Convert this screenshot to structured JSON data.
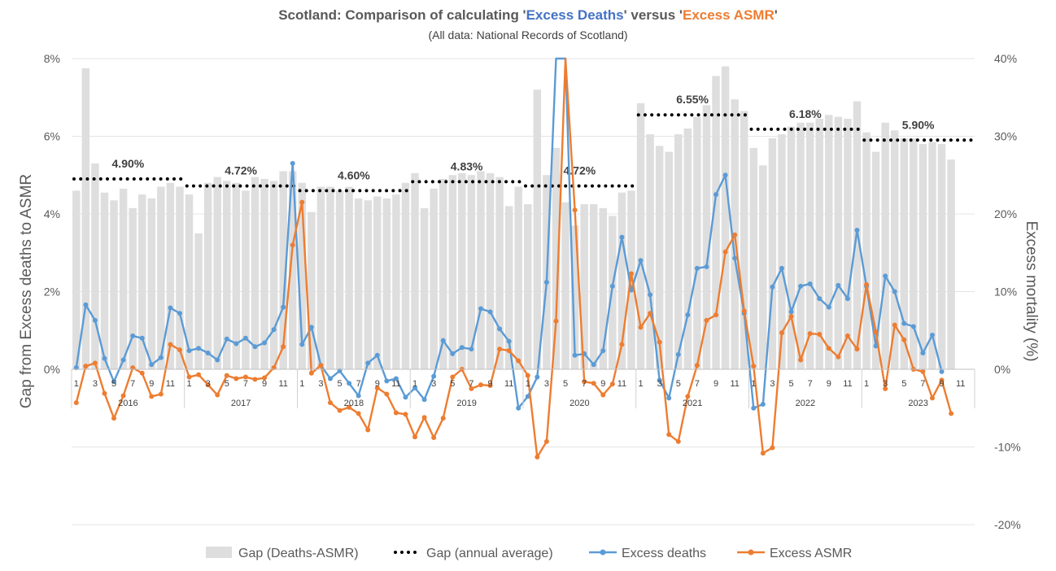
{
  "chart_data": {
    "type": "bar+line",
    "title_parts": [
      {
        "text": "Scotland: Comparison of calculating '",
        "color": "#595959"
      },
      {
        "text": "Excess Deaths",
        "color": "#4472c4"
      },
      {
        "text": "' versus '",
        "color": "#595959"
      },
      {
        "text": "Excess ASMR",
        "color": "#ed7d31"
      },
      {
        "text": "'",
        "color": "#595959"
      }
    ],
    "subtitle": "(All data: National Records of Scotland)",
    "ylabel_left": "Gap from Excess deaths to ASMR",
    "ylabel_right": "Excess mortality (%)",
    "left_axis": {
      "min": -4,
      "max": 8,
      "ticks": [
        0,
        2,
        4,
        6,
        8
      ],
      "tick_labels": [
        "0%",
        "2%",
        "4%",
        "6%",
        "8%"
      ]
    },
    "right_axis": {
      "min": -20,
      "max": 40,
      "ticks": [
        -20,
        -10,
        0,
        10,
        20,
        30,
        40
      ],
      "tick_labels": [
        "-20%",
        "-10%",
        "0%",
        "10%",
        "20%",
        "30%",
        "40%"
      ]
    },
    "years": [
      "2016",
      "2017",
      "2018",
      "2019",
      "2020",
      "2021",
      "2022",
      "2023"
    ],
    "month_ticks": [
      "1",
      "3",
      "5",
      "7",
      "9",
      "11"
    ],
    "series": [
      {
        "name": "Gap (Deaths-ASMR)",
        "kind": "bar",
        "axis": "left",
        "color": "#dedede",
        "values": [
          4.6,
          7.75,
          5.3,
          4.55,
          4.35,
          4.65,
          4.15,
          4.5,
          4.4,
          4.7,
          4.8,
          4.7,
          4.5,
          3.5,
          4.8,
          4.95,
          4.85,
          4.8,
          4.6,
          4.95,
          4.9,
          4.85,
          5.1,
          5.1,
          4.8,
          4.05,
          4.7,
          4.7,
          4.6,
          4.7,
          4.4,
          4.35,
          4.45,
          4.4,
          4.5,
          4.8,
          5.05,
          4.15,
          4.65,
          4.9,
          5.0,
          5.05,
          5.0,
          5.1,
          5.05,
          4.95,
          4.2,
          4.7,
          4.25,
          7.2,
          5.0,
          5.7,
          4.3,
          3.7,
          4.25,
          4.25,
          4.15,
          3.95,
          4.55,
          4.6,
          6.85,
          6.05,
          5.75,
          5.6,
          6.05,
          6.2,
          6.5,
          6.8,
          7.55,
          7.8,
          6.95,
          6.65,
          5.7,
          5.25,
          5.95,
          6.05,
          6.25,
          6.35,
          6.35,
          6.45,
          6.55,
          6.5,
          6.45,
          6.9,
          6.1,
          5.6,
          6.35,
          6.15,
          5.95,
          5.95,
          5.8,
          5.85,
          5.8,
          5.4
        ]
      },
      {
        "name": "Gap (annual average)",
        "kind": "dotted",
        "axis": "left",
        "color": "#000000",
        "years": [
          "2016",
          "2017",
          "2018",
          "2019",
          "2020",
          "2021",
          "2022",
          "2023"
        ],
        "values": [
          4.9,
          4.72,
          4.6,
          4.83,
          4.72,
          6.55,
          6.18,
          5.9
        ],
        "labels": [
          "4.90%",
          "4.72%",
          "4.60%",
          "4.83%",
          "4.72%",
          "6.55%",
          "6.18%",
          "5.90%"
        ]
      },
      {
        "name": "Excess deaths",
        "kind": "line",
        "axis": "right",
        "color": "#5b9bd5",
        "values": [
          0.2,
          8.3,
          6.3,
          1.4,
          -1.6,
          1.2,
          4.3,
          4.0,
          0.6,
          1.5,
          7.9,
          7.2,
          2.4,
          2.7,
          2.1,
          1.2,
          3.9,
          3.3,
          4.0,
          2.9,
          3.4,
          5.1,
          8.0,
          26.5,
          3.2,
          5.4,
          0.5,
          -1.2,
          -0.2,
          -1.8,
          -3.4,
          0.8,
          1.8,
          -1.5,
          -1.2,
          -3.6,
          -2.4,
          -3.9,
          -0.9,
          3.7,
          2.0,
          2.8,
          2.6,
          7.8,
          7.4,
          5.2,
          3.6,
          -5.0,
          -3.5,
          -1.0,
          11.2,
          43.0,
          43.0,
          1.8,
          2.0,
          0.6,
          2.4,
          10.7,
          17.0,
          10.2,
          14.0,
          9.6,
          -1.4,
          -3.7,
          1.9,
          7.0,
          13.0,
          13.2,
          22.5,
          25.0,
          14.3,
          7.2,
          -5.0,
          -4.5,
          10.6,
          13.0,
          7.4,
          10.7,
          11.0,
          9.1,
          8.0,
          10.8,
          9.1,
          17.9,
          10.7,
          3.0,
          12.0,
          10.0,
          5.9,
          5.5,
          2.1,
          4.4,
          -0.3
        ]
      },
      {
        "name": "Excess ASMR",
        "kind": "line",
        "axis": "right",
        "color": "#ed7d31",
        "values": [
          -4.3,
          0.4,
          0.8,
          -3.1,
          -6.3,
          -3.4,
          0.2,
          -0.5,
          -3.5,
          -3.2,
          3.2,
          2.5,
          -1.0,
          -0.7,
          -2.0,
          -3.3,
          -0.8,
          -1.2,
          -1.0,
          -1.3,
          -1.1,
          0.2,
          2.9,
          16.0,
          21.5,
          -0.5,
          0.5,
          -4.3,
          -5.3,
          -4.9,
          -5.7,
          -7.8,
          -2.4,
          -3.2,
          -5.6,
          -5.8,
          -8.7,
          -6.2,
          -8.8,
          -6.3,
          -1.0,
          0.0,
          -2.5,
          -2.0,
          -2.1,
          2.6,
          2.4,
          1.1,
          -0.8,
          -11.3,
          -9.3,
          6.2,
          43.0,
          20.5,
          -1.6,
          -1.8,
          -3.3,
          -1.9,
          3.2,
          12.3,
          5.4,
          7.2,
          3.5,
          -8.4,
          -9.3,
          -3.5,
          0.5,
          6.3,
          7.0,
          15.1,
          17.3,
          7.5,
          0.4,
          -10.8,
          -10.1,
          4.7,
          6.8,
          1.2,
          4.6,
          4.5,
          2.7,
          1.6,
          4.3,
          2.6,
          10.9,
          4.8,
          -2.5,
          5.7,
          3.8,
          0.0,
          -0.3,
          -3.7,
          -1.4,
          -5.7
        ]
      }
    ],
    "legend": [
      "Gap (Deaths-ASMR)",
      "Gap (annual average)",
      "Excess deaths",
      "Excess ASMR"
    ],
    "legend_position": "bottom",
    "gridlines": true
  }
}
